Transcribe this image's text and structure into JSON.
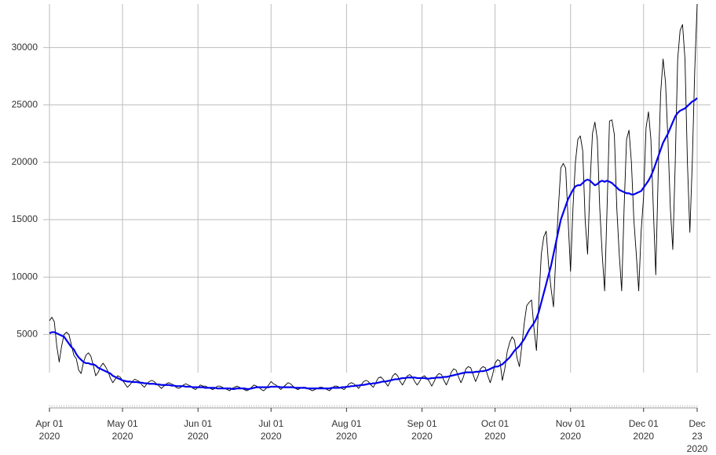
{
  "chart_data": {
    "type": "line",
    "x": [
      "2020-04-01",
      "2020-04-02",
      "2020-04-03",
      "2020-04-04",
      "2020-04-05",
      "2020-04-06",
      "2020-04-07",
      "2020-04-08",
      "2020-04-09",
      "2020-04-10",
      "2020-04-11",
      "2020-04-12",
      "2020-04-13",
      "2020-04-14",
      "2020-04-15",
      "2020-04-16",
      "2020-04-17",
      "2020-04-18",
      "2020-04-19",
      "2020-04-20",
      "2020-04-21",
      "2020-04-22",
      "2020-04-23",
      "2020-04-24",
      "2020-04-25",
      "2020-04-26",
      "2020-04-27",
      "2020-04-28",
      "2020-04-29",
      "2020-04-30",
      "2020-05-01",
      "2020-05-02",
      "2020-05-03",
      "2020-05-04",
      "2020-05-05",
      "2020-05-06",
      "2020-05-07",
      "2020-05-08",
      "2020-05-09",
      "2020-05-10",
      "2020-05-11",
      "2020-05-12",
      "2020-05-13",
      "2020-05-14",
      "2020-05-15",
      "2020-05-16",
      "2020-05-17",
      "2020-05-18",
      "2020-05-19",
      "2020-05-20",
      "2020-05-21",
      "2020-05-22",
      "2020-05-23",
      "2020-05-24",
      "2020-05-25",
      "2020-05-26",
      "2020-05-27",
      "2020-05-28",
      "2020-05-29",
      "2020-05-30",
      "2020-05-31",
      "2020-06-01",
      "2020-06-02",
      "2020-06-03",
      "2020-06-04",
      "2020-06-05",
      "2020-06-06",
      "2020-06-07",
      "2020-06-08",
      "2020-06-09",
      "2020-06-10",
      "2020-06-11",
      "2020-06-12",
      "2020-06-13",
      "2020-06-14",
      "2020-06-15",
      "2020-06-16",
      "2020-06-17",
      "2020-06-18",
      "2020-06-19",
      "2020-06-20",
      "2020-06-21",
      "2020-06-22",
      "2020-06-23",
      "2020-06-24",
      "2020-06-25",
      "2020-06-26",
      "2020-06-27",
      "2020-06-28",
      "2020-06-29",
      "2020-06-30",
      "2020-07-01",
      "2020-07-02",
      "2020-07-03",
      "2020-07-04",
      "2020-07-05",
      "2020-07-06",
      "2020-07-07",
      "2020-07-08",
      "2020-07-09",
      "2020-07-10",
      "2020-07-11",
      "2020-07-12",
      "2020-07-13",
      "2020-07-14",
      "2020-07-15",
      "2020-07-16",
      "2020-07-17",
      "2020-07-18",
      "2020-07-19",
      "2020-07-20",
      "2020-07-21",
      "2020-07-22",
      "2020-07-23",
      "2020-07-24",
      "2020-07-25",
      "2020-07-26",
      "2020-07-27",
      "2020-07-28",
      "2020-07-29",
      "2020-07-30",
      "2020-07-31",
      "2020-08-01",
      "2020-08-02",
      "2020-08-03",
      "2020-08-04",
      "2020-08-05",
      "2020-08-06",
      "2020-08-07",
      "2020-08-08",
      "2020-08-09",
      "2020-08-10",
      "2020-08-11",
      "2020-08-12",
      "2020-08-13",
      "2020-08-14",
      "2020-08-15",
      "2020-08-16",
      "2020-08-17",
      "2020-08-18",
      "2020-08-19",
      "2020-08-20",
      "2020-08-21",
      "2020-08-22",
      "2020-08-23",
      "2020-08-24",
      "2020-08-25",
      "2020-08-26",
      "2020-08-27",
      "2020-08-28",
      "2020-08-29",
      "2020-08-30",
      "2020-08-31",
      "2020-09-01",
      "2020-09-02",
      "2020-09-03",
      "2020-09-04",
      "2020-09-05",
      "2020-09-06",
      "2020-09-07",
      "2020-09-08",
      "2020-09-09",
      "2020-09-10",
      "2020-09-11",
      "2020-09-12",
      "2020-09-13",
      "2020-09-14",
      "2020-09-15",
      "2020-09-16",
      "2020-09-17",
      "2020-09-18",
      "2020-09-19",
      "2020-09-20",
      "2020-09-21",
      "2020-09-22",
      "2020-09-23",
      "2020-09-24",
      "2020-09-25",
      "2020-09-26",
      "2020-09-27",
      "2020-09-28",
      "2020-09-29",
      "2020-09-30",
      "2020-10-01",
      "2020-10-02",
      "2020-10-03",
      "2020-10-04",
      "2020-10-05",
      "2020-10-06",
      "2020-10-07",
      "2020-10-08",
      "2020-10-09",
      "2020-10-10",
      "2020-10-11",
      "2020-10-12",
      "2020-10-13",
      "2020-10-14",
      "2020-10-15",
      "2020-10-16",
      "2020-10-17",
      "2020-10-18",
      "2020-10-19",
      "2020-10-20",
      "2020-10-21",
      "2020-10-22",
      "2020-10-23",
      "2020-10-24",
      "2020-10-25",
      "2020-10-26",
      "2020-10-27",
      "2020-10-28",
      "2020-10-29",
      "2020-10-30",
      "2020-10-31",
      "2020-11-01",
      "2020-11-02",
      "2020-11-03",
      "2020-11-04",
      "2020-11-05",
      "2020-11-06",
      "2020-11-07",
      "2020-11-08",
      "2020-11-09",
      "2020-11-10",
      "2020-11-11",
      "2020-11-12",
      "2020-11-13",
      "2020-11-14",
      "2020-11-15",
      "2020-11-16",
      "2020-11-17",
      "2020-11-18",
      "2020-11-19",
      "2020-11-20",
      "2020-11-21",
      "2020-11-22",
      "2020-11-23",
      "2020-11-24",
      "2020-11-25",
      "2020-11-26",
      "2020-11-27",
      "2020-11-28",
      "2020-11-29",
      "2020-11-30",
      "2020-12-01",
      "2020-12-02",
      "2020-12-03",
      "2020-12-04",
      "2020-12-05",
      "2020-12-06",
      "2020-12-07",
      "2020-12-08",
      "2020-12-09",
      "2020-12-10",
      "2020-12-11",
      "2020-12-12",
      "2020-12-13",
      "2020-12-14",
      "2020-12-15",
      "2020-12-16",
      "2020-12-17",
      "2020-12-18",
      "2020-12-19",
      "2020-12-20",
      "2020-12-21",
      "2020-12-22",
      "2020-12-23"
    ],
    "series": [
      {
        "color": "#000000",
        "values": [
          6200,
          6500,
          6100,
          4000,
          2600,
          4000,
          5000,
          5200,
          5000,
          4100,
          3200,
          2900,
          1900,
          1600,
          2600,
          3200,
          3400,
          3100,
          2300,
          1400,
          1700,
          2200,
          2500,
          2200,
          1800,
          1200,
          800,
          1100,
          1400,
          1300,
          1000,
          700,
          400,
          600,
          900,
          1100,
          1000,
          900,
          600,
          400,
          700,
          900,
          1000,
          900,
          700,
          500,
          300,
          500,
          700,
          800,
          700,
          600,
          400,
          300,
          400,
          600,
          700,
          600,
          500,
          300,
          200,
          400,
          600,
          500,
          500,
          400,
          300,
          200,
          300,
          500,
          500,
          400,
          300,
          200,
          100,
          300,
          400,
          500,
          400,
          300,
          200,
          100,
          200,
          400,
          600,
          500,
          400,
          200,
          100,
          300,
          600,
          900,
          700,
          600,
          400,
          200,
          400,
          600,
          800,
          700,
          500,
          300,
          200,
          300,
          400,
          400,
          300,
          200,
          100,
          200,
          300,
          400,
          400,
          300,
          200,
          100,
          300,
          500,
          500,
          400,
          300,
          200,
          400,
          700,
          800,
          700,
          500,
          300,
          600,
          900,
          1000,
          900,
          600,
          400,
          800,
          1200,
          1300,
          1100,
          800,
          500,
          900,
          1400,
          1600,
          1400,
          900,
          600,
          1000,
          1400,
          1500,
          1300,
          900,
          600,
          900,
          1300,
          1400,
          1200,
          900,
          500,
          900,
          1400,
          1600,
          1500,
          1000,
          600,
          1100,
          1700,
          2000,
          1900,
          1300,
          800,
          1300,
          2000,
          2200,
          2100,
          1500,
          900,
          1400,
          2000,
          2200,
          2100,
          1400,
          800,
          1500,
          2500,
          2800,
          2700,
          1000,
          2000,
          3500,
          4300,
          4800,
          4500,
          3000,
          2200,
          4000,
          6000,
          7500,
          7800,
          8000,
          5500,
          3600,
          8000,
          12000,
          13500,
          14000,
          11000,
          9000,
          7400,
          12000,
          16000,
          19500,
          19900,
          19500,
          15000,
          10500,
          16000,
          20000,
          22000,
          22300,
          21000,
          15000,
          12000,
          18000,
          22500,
          23500,
          22000,
          16000,
          12000,
          8800,
          16000,
          23600,
          23700,
          22400,
          16000,
          12000,
          8800,
          16000,
          22000,
          22800,
          20000,
          15000,
          12000,
          8800,
          14000,
          17000,
          23000,
          24400,
          22000,
          16000,
          10200,
          19000,
          26000,
          29000,
          27000,
          22000,
          16000,
          12400,
          20000,
          29000,
          31500,
          32000,
          29000,
          20000,
          13900,
          20000,
          28000,
          33800
        ]
      },
      {
        "color": "#0000ee",
        "values": [
          5100,
          5200,
          5200,
          5100,
          5000,
          4900,
          4800,
          4500,
          4200,
          3900,
          3700,
          3300,
          3000,
          2800,
          2600,
          2500,
          2500,
          2400,
          2400,
          2300,
          2100,
          2000,
          1900,
          1800,
          1700,
          1600,
          1400,
          1300,
          1200,
          1100,
          1000,
          950,
          900,
          900,
          850,
          850,
          850,
          800,
          800,
          750,
          750,
          700,
          700,
          700,
          650,
          650,
          600,
          600,
          600,
          600,
          550,
          550,
          500,
          500,
          500,
          500,
          450,
          450,
          450,
          400,
          400,
          400,
          400,
          400,
          350,
          350,
          350,
          350,
          350,
          300,
          300,
          300,
          300,
          300,
          300,
          250,
          250,
          300,
          300,
          300,
          300,
          250,
          250,
          300,
          350,
          400,
          400,
          400,
          400,
          400,
          400,
          450,
          450,
          450,
          450,
          400,
          400,
          400,
          400,
          400,
          400,
          350,
          350,
          350,
          350,
          350,
          300,
          300,
          300,
          300,
          300,
          300,
          300,
          300,
          300,
          300,
          350,
          350,
          350,
          350,
          400,
          400,
          450,
          450,
          500,
          500,
          550,
          550,
          600,
          600,
          650,
          700,
          700,
          750,
          750,
          800,
          850,
          900,
          900,
          950,
          1000,
          1050,
          1100,
          1100,
          1150,
          1200,
          1200,
          1250,
          1250,
          1250,
          1250,
          1200,
          1200,
          1200,
          1200,
          1150,
          1150,
          1200,
          1200,
          1250,
          1250,
          1250,
          1300,
          1300,
          1350,
          1400,
          1450,
          1500,
          1550,
          1600,
          1650,
          1700,
          1700,
          1700,
          1700,
          1750,
          1750,
          1800,
          1800,
          1850,
          1900,
          2000,
          2100,
          2200,
          2200,
          2300,
          2400,
          2600,
          2800,
          3000,
          3300,
          3600,
          3800,
          4000,
          4300,
          4600,
          5000,
          5400,
          5700,
          6000,
          6400,
          7000,
          7800,
          8600,
          9400,
          10200,
          11000,
          12000,
          13000,
          14000,
          15000,
          15600,
          16200,
          16800,
          17200,
          17600,
          17900,
          18000,
          18000,
          18200,
          18400,
          18500,
          18400,
          18200,
          18000,
          18100,
          18300,
          18400,
          18300,
          18400,
          18300,
          18200,
          18000,
          17800,
          17600,
          17500,
          17400,
          17300,
          17300,
          17200,
          17200,
          17300,
          17400,
          17500,
          17800,
          18100,
          18400,
          18800,
          19300,
          19900,
          20500,
          21100,
          21700,
          22100,
          22500,
          23000,
          23500,
          24000,
          24300,
          24500,
          24600,
          24700,
          24900,
          25100,
          25300,
          25400,
          25600
        ]
      }
    ],
    "ylim": [
      -1400,
      33800
    ],
    "yticks": [
      5000,
      10000,
      15000,
      20000,
      25000,
      30000
    ],
    "xticks": [
      {
        "value": "2020-04-01",
        "label": "Apr 01\n2020"
      },
      {
        "value": "2020-05-01",
        "label": "May 01\n2020"
      },
      {
        "value": "2020-06-01",
        "label": "Jun 01\n2020"
      },
      {
        "value": "2020-07-01",
        "label": "Jul 01\n2020"
      },
      {
        "value": "2020-08-01",
        "label": "Aug 01\n2020"
      },
      {
        "value": "2020-09-01",
        "label": "Sep 01\n2020"
      },
      {
        "value": "2020-10-01",
        "label": "Oct 01\n2020"
      },
      {
        "value": "2020-11-01",
        "label": "Nov 01\n2020"
      },
      {
        "value": "2020-12-01",
        "label": "Dec 01\n2020"
      },
      {
        "value": "2020-12-23",
        "label": "Dec 23\n2020"
      }
    ],
    "grid": true
  }
}
